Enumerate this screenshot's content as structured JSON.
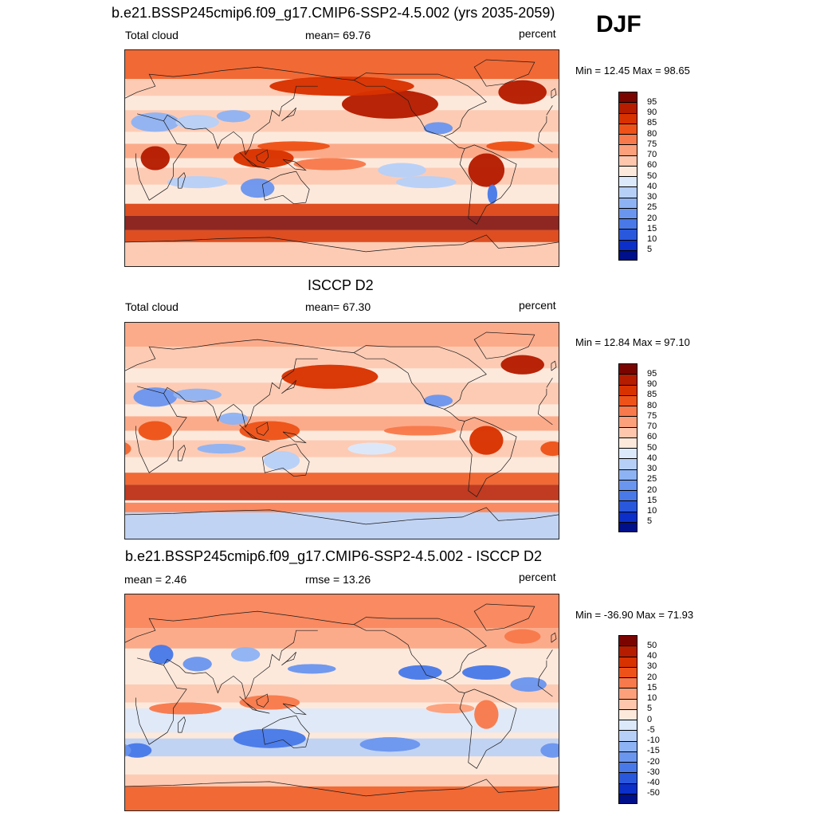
{
  "season": "DJF",
  "panels": [
    {
      "title": "b.e21.BSSP245cmip6.f09_g17.CMIP6-SSP2-4.5.002 (yrs 2035-2059)",
      "left_label": "Total cloud",
      "center_label": "mean=  69.76",
      "units": "percent",
      "minmax": "Min =  12.45 Max =  98.65",
      "colorbar_labels": [
        "95",
        "90",
        "85",
        "80",
        "75",
        "70",
        "60",
        "50",
        "40",
        "30",
        "25",
        "20",
        "15",
        "10",
        "5"
      ],
      "colors": [
        "#7a0400",
        "#b51c00",
        "#d83200",
        "#ee5218",
        "#f8794b",
        "#fca07b",
        "#fdc6ad",
        "#fde9dc",
        "#dbe9fb",
        "#b6cff7",
        "#8eb3f4",
        "#6b96ef",
        "#4979e8",
        "#2a58dc",
        "#0b2fc8",
        "#000f8a"
      ],
      "map_type": "model"
    },
    {
      "title": "ISCCP D2",
      "left_label": "Total cloud",
      "center_label": "mean=  67.30",
      "units": "percent",
      "minmax": "Min =  12.84 Max =  97.10",
      "colorbar_labels": [
        "95",
        "90",
        "85",
        "80",
        "75",
        "70",
        "60",
        "50",
        "40",
        "30",
        "25",
        "20",
        "15",
        "10",
        "5"
      ],
      "colors": [
        "#7a0400",
        "#b51c00",
        "#d83200",
        "#ee5218",
        "#f8794b",
        "#fca07b",
        "#fdc6ad",
        "#fde9dc",
        "#dbe9fb",
        "#b6cff7",
        "#8eb3f4",
        "#6b96ef",
        "#4979e8",
        "#2a58dc",
        "#0b2fc8",
        "#000f8a"
      ],
      "map_type": "obs"
    },
    {
      "title": "b.e21.BSSP245cmip6.f09_g17.CMIP6-SSP2-4.5.002 - ISCCP D2",
      "left_label": "mean =   2.46",
      "center_label": "rmse =  13.26",
      "units": "percent",
      "minmax": "Min = -36.90 Max =  71.93",
      "colorbar_labels": [
        "50",
        "40",
        "30",
        "20",
        "15",
        "10",
        "5",
        "0",
        "-5",
        "-10",
        "-15",
        "-20",
        "-30",
        "-40",
        "-50"
      ],
      "colors": [
        "#7a0400",
        "#b51c00",
        "#d83200",
        "#ee5218",
        "#f8794b",
        "#fca07b",
        "#fdc6ad",
        "#fde9dc",
        "#dbe9fb",
        "#b6cff7",
        "#8eb3f4",
        "#6b96ef",
        "#4979e8",
        "#2a58dc",
        "#0b2fc8",
        "#000f8a"
      ],
      "map_type": "diff"
    }
  ]
}
